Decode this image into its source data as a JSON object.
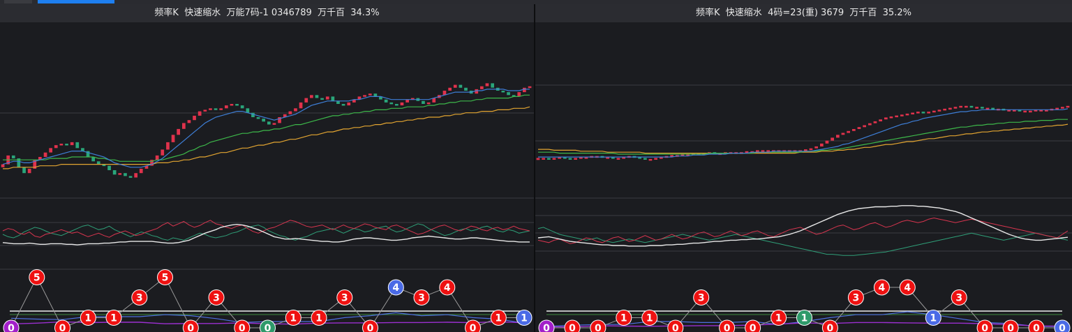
{
  "colors": {
    "up": "#e0324c",
    "down": "#2aa57a",
    "ma1": "#3e7fd8",
    "ma2": "#3db84a",
    "ma3": "#e3a531",
    "osc_red": "#d8354f",
    "osc_green": "#2f9f78",
    "osc_white": "#e8e8e8",
    "circle_red": "#ee1111",
    "circle_blue": "#4a6ae6",
    "circle_green": "#2e9a6a",
    "circle_purple": "#a21ec9"
  },
  "chart_data": [
    {
      "type": "candlestick",
      "title": "频率K  快速缩水  万能7码-1 0346789  万千百  34.3%",
      "closes": [
        52,
        58,
        56,
        50,
        46,
        49,
        55,
        57,
        60,
        63,
        65,
        66,
        65,
        67,
        63,
        61,
        57,
        54,
        52,
        51,
        48,
        45,
        46,
        44,
        43,
        46,
        49,
        51,
        55,
        58,
        62,
        67,
        72,
        76,
        80,
        82,
        85,
        88,
        89,
        90,
        89,
        90,
        92,
        93,
        92,
        90,
        87,
        84,
        83,
        81,
        79,
        80,
        84,
        86,
        88,
        90,
        94,
        97,
        99,
        97,
        96,
        98,
        95,
        93,
        92,
        94,
        96,
        98,
        99,
        100,
        98,
        96,
        94,
        93,
        92,
        94,
        96,
        97,
        95,
        93,
        94,
        97,
        99,
        102,
        104,
        106,
        104,
        102,
        100,
        103,
        105,
        107,
        104,
        102,
        101,
        99,
        98,
        101,
        104,
        105
      ],
      "ma_short": [
        52,
        53,
        54,
        54,
        53,
        53,
        54,
        55,
        56,
        57,
        58,
        59,
        60,
        61,
        61,
        61,
        60,
        59,
        58,
        57,
        55,
        53,
        52,
        51,
        50,
        50,
        50,
        51,
        52,
        54,
        56,
        59,
        62,
        65,
        68,
        71,
        74,
        77,
        80,
        82,
        84,
        85,
        86,
        87,
        88,
        88,
        87,
        86,
        85,
        84,
        83,
        82,
        83,
        84,
        85,
        86,
        88,
        90,
        92,
        93,
        94,
        95,
        95,
        95,
        95,
        95,
        96,
        96,
        97,
        98,
        98,
        98,
        97,
        96,
        96,
        96,
        96,
        96,
        96,
        96,
        96,
        97,
        98,
        99,
        100,
        101,
        101,
        101,
        101,
        102,
        102,
        103,
        103,
        103,
        103,
        102,
        102,
        102,
        103,
        103
      ],
      "ma_mid": [
        55,
        55,
        55,
        55,
        55,
        55,
        55,
        55,
        55,
        56,
        56,
        56,
        56,
        57,
        57,
        57,
        57,
        57,
        56,
        56,
        55,
        55,
        54,
        54,
        54,
        54,
        54,
        54,
        54,
        55,
        55,
        56,
        57,
        58,
        59,
        61,
        62,
        64,
        65,
        67,
        68,
        69,
        70,
        71,
        72,
        73,
        73,
        74,
        74,
        75,
        75,
        76,
        76,
        77,
        78,
        79,
        79,
        80,
        81,
        82,
        83,
        84,
        85,
        85,
        86,
        86,
        87,
        87,
        88,
        88,
        89,
        89,
        89,
        90,
        90,
        90,
        91,
        91,
        91,
        91,
        92,
        92,
        93,
        93,
        94,
        94,
        95,
        95,
        95,
        96,
        96,
        97,
        97,
        97,
        97,
        97,
        98,
        98,
        99,
        99
      ],
      "ma_long": [
        49,
        49,
        50,
        50,
        50,
        50,
        50,
        51,
        51,
        51,
        51,
        52,
        52,
        52,
        52,
        52,
        52,
        52,
        52,
        52,
        52,
        52,
        52,
        52,
        52,
        52,
        52,
        52,
        52,
        53,
        53,
        53,
        54,
        54,
        55,
        55,
        56,
        57,
        57,
        58,
        59,
        60,
        60,
        61,
        62,
        63,
        63,
        64,
        65,
        65,
        66,
        67,
        67,
        68,
        69,
        69,
        70,
        71,
        72,
        72,
        73,
        74,
        74,
        75,
        76,
        76,
        77,
        77,
        78,
        78,
        79,
        79,
        80,
        80,
        81,
        81,
        82,
        82,
        83,
        83,
        84,
        84,
        84,
        85,
        85,
        86,
        86,
        87,
        87,
        87,
        88,
        88,
        88,
        89,
        89,
        89,
        90,
        90,
        90,
        91
      ],
      "ylim": [
        30,
        120
      ],
      "osc_red": [
        56,
        60,
        58,
        52,
        50,
        54,
        47,
        45,
        50,
        52,
        55,
        58,
        55,
        52,
        54,
        50,
        46,
        49,
        52,
        48,
        45,
        50,
        53,
        56,
        52,
        48,
        50,
        54,
        57,
        60,
        66,
        70,
        64,
        68,
        72,
        66,
        62,
        65,
        70,
        74,
        68,
        66,
        62,
        60,
        64,
        66,
        60,
        55,
        52,
        56,
        60,
        62,
        66,
        70,
        74,
        72,
        68,
        64,
        62,
        64,
        66,
        62,
        58,
        62,
        66,
        62,
        60,
        64,
        68,
        66,
        62,
        60,
        58,
        64,
        66,
        62,
        58,
        54,
        50,
        52,
        56,
        60,
        64,
        66,
        62,
        58,
        56,
        60,
        64,
        62,
        58,
        56,
        60,
        62,
        58,
        60,
        64,
        60,
        58,
        56
      ],
      "osc_green": [
        50,
        46,
        44,
        48,
        54,
        58,
        62,
        60,
        56,
        52,
        50,
        48,
        52,
        56,
        60,
        64,
        66,
        62,
        58,
        60,
        64,
        58,
        54,
        50,
        46,
        50,
        54,
        52,
        48,
        46,
        42,
        40,
        44,
        42,
        40,
        44,
        48,
        52,
        50,
        46,
        44,
        46,
        48,
        52,
        54,
        58,
        62,
        64,
        66,
        62,
        56,
        52,
        48,
        46,
        42,
        40,
        44,
        46,
        50,
        54,
        56,
        58,
        60,
        56,
        52,
        56,
        60,
        58,
        54,
        56,
        60,
        62,
        64,
        58,
        54,
        56,
        60,
        64,
        68,
        66,
        60,
        56,
        52,
        48,
        50,
        54,
        58,
        60,
        56,
        58,
        62,
        64,
        60,
        56,
        54,
        58,
        56,
        52,
        54,
        56
      ],
      "osc_white": [
        36,
        35,
        34,
        34,
        34,
        35,
        34,
        33,
        33,
        34,
        34,
        34,
        33,
        33,
        32,
        33,
        34,
        34,
        34,
        35,
        35,
        36,
        37,
        37,
        38,
        38,
        38,
        38,
        38,
        37,
        36,
        35,
        35,
        36,
        38,
        40,
        44,
        48,
        52,
        55,
        58,
        62,
        64,
        66,
        67,
        66,
        64,
        61,
        58,
        54,
        50,
        46,
        44,
        42,
        42,
        43,
        42,
        41,
        40,
        39,
        38,
        38,
        37,
        37,
        38,
        40,
        42,
        43,
        44,
        44,
        43,
        42,
        41,
        40,
        40,
        41,
        42,
        44,
        45,
        46,
        47,
        46,
        45,
        44,
        43,
        42,
        42,
        43,
        44,
        44,
        43,
        42,
        41,
        40,
        39,
        38,
        38,
        37,
        37,
        37
      ],
      "pattern_nums": [
        0,
        5,
        0,
        1,
        1,
        3,
        5,
        0,
        3,
        0,
        0,
        1,
        1,
        3,
        0,
        4,
        3,
        4,
        0,
        1,
        1
      ],
      "pattern_colors": [
        "purple",
        "red",
        "red",
        "red",
        "red",
        "red",
        "red",
        "red",
        "red",
        "red",
        "green",
        "red",
        "red",
        "red",
        "red",
        "blue",
        "red",
        "red",
        "red",
        "red",
        "blue"
      ]
    },
    {
      "type": "candlestick",
      "title": "频率K  快速缩水  4码=23(重) 3679  万千百  35.2%",
      "closes": [
        30,
        30,
        29,
        30,
        31,
        30,
        29,
        30,
        31,
        31,
        32,
        32,
        31,
        31,
        30,
        30,
        31,
        32,
        31,
        30,
        29,
        29,
        30,
        31,
        32,
        33,
        33,
        34,
        34,
        35,
        35,
        35,
        36,
        35,
        35,
        36,
        36,
        36,
        36,
        37,
        37,
        38,
        38,
        38,
        38,
        38,
        38,
        38,
        38,
        38,
        39,
        40,
        42,
        45,
        48,
        51,
        54,
        56,
        58,
        60,
        62,
        64,
        66,
        68,
        70,
        72,
        73,
        74,
        75,
        76,
        77,
        78,
        77,
        78,
        79,
        80,
        81,
        82,
        83,
        84,
        84,
        83,
        83,
        82,
        82,
        81,
        81,
        80,
        80,
        80,
        79,
        79,
        79,
        80,
        80,
        80,
        81,
        82,
        83,
        84
      ],
      "ma_short": [
        31,
        31,
        31,
        31,
        31,
        31,
        31,
        31,
        31,
        31,
        31,
        31,
        31,
        31,
        31,
        31,
        31,
        31,
        31,
        31,
        31,
        31,
        31,
        31,
        31,
        31,
        32,
        32,
        32,
        33,
        33,
        33,
        34,
        34,
        34,
        34,
        35,
        35,
        35,
        35,
        36,
        36,
        36,
        36,
        37,
        37,
        37,
        37,
        37,
        37,
        37,
        37,
        38,
        39,
        40,
        41,
        42,
        44,
        45,
        47,
        49,
        51,
        53,
        55,
        57,
        59,
        61,
        63,
        65,
        66,
        68,
        69,
        71,
        72,
        73,
        74,
        75,
        76,
        77,
        78,
        78,
        79,
        79,
        80,
        80,
        80,
        80,
        80,
        80,
        80,
        80,
        80,
        80,
        80,
        80,
        80,
        80,
        80,
        80,
        81
      ],
      "ma_mid": [
        36,
        36,
        36,
        36,
        35,
        35,
        35,
        35,
        35,
        35,
        35,
        35,
        35,
        35,
        35,
        34,
        34,
        34,
        34,
        34,
        34,
        34,
        34,
        34,
        34,
        34,
        34,
        34,
        34,
        34,
        34,
        34,
        35,
        35,
        35,
        35,
        35,
        35,
        35,
        35,
        35,
        36,
        36,
        36,
        36,
        36,
        36,
        36,
        36,
        36,
        37,
        37,
        37,
        38,
        38,
        39,
        39,
        40,
        41,
        42,
        43,
        44,
        45,
        46,
        47,
        48,
        49,
        50,
        51,
        52,
        53,
        54,
        55,
        56,
        57,
        58,
        59,
        60,
        61,
        62,
        62,
        63,
        64,
        64,
        65,
        65,
        66,
        66,
        67,
        67,
        67,
        68,
        68,
        68,
        69,
        69,
        69,
        70,
        70,
        70
      ],
      "ma_long": [
        39,
        39,
        39,
        38,
        38,
        38,
        38,
        38,
        37,
        37,
        37,
        37,
        37,
        36,
        36,
        36,
        36,
        36,
        36,
        36,
        35,
        35,
        35,
        35,
        35,
        35,
        35,
        35,
        35,
        35,
        35,
        35,
        35,
        35,
        35,
        35,
        35,
        35,
        35,
        35,
        35,
        35,
        35,
        35,
        35,
        35,
        35,
        35,
        35,
        36,
        36,
        36,
        36,
        37,
        37,
        37,
        38,
        38,
        39,
        39,
        40,
        41,
        41,
        42,
        43,
        44,
        44,
        45,
        46,
        47,
        47,
        48,
        49,
        50,
        50,
        51,
        52,
        53,
        53,
        54,
        55,
        55,
        56,
        57,
        57,
        58,
        58,
        59,
        59,
        60,
        60,
        61,
        61,
        62,
        62,
        63,
        63,
        64,
        64,
        65
      ],
      "ylim": [
        0,
        120
      ],
      "osc_red": [
        40,
        38,
        36,
        40,
        42,
        38,
        34,
        36,
        40,
        44,
        42,
        38,
        36,
        40,
        44,
        46,
        42,
        38,
        40,
        44,
        48,
        44,
        40,
        42,
        46,
        50,
        46,
        42,
        44,
        48,
        52,
        54,
        50,
        46,
        48,
        52,
        56,
        52,
        48,
        50,
        54,
        56,
        52,
        48,
        46,
        50,
        54,
        58,
        60,
        62,
        58,
        54,
        50,
        52,
        56,
        60,
        64,
        66,
        62,
        58,
        60,
        64,
        68,
        70,
        66,
        62,
        64,
        68,
        72,
        74,
        72,
        70,
        72,
        76,
        78,
        76,
        74,
        72,
        70,
        72,
        74,
        76,
        74,
        72,
        70,
        68,
        66,
        64,
        62,
        60,
        58,
        56,
        54,
        52,
        50,
        48,
        46,
        44,
        50,
        56
      ],
      "osc_green": [
        60,
        62,
        58,
        54,
        50,
        48,
        46,
        44,
        42,
        40,
        42,
        44,
        40,
        38,
        36,
        38,
        40,
        42,
        40,
        38,
        36,
        38,
        40,
        42,
        44,
        46,
        48,
        50,
        48,
        46,
        44,
        42,
        40,
        42,
        44,
        46,
        48,
        50,
        48,
        46,
        44,
        42,
        40,
        38,
        36,
        34,
        32,
        30,
        28,
        26,
        24,
        22,
        20,
        18,
        16,
        16,
        15,
        14,
        14,
        14,
        15,
        16,
        17,
        18,
        19,
        20,
        22,
        24,
        26,
        28,
        30,
        32,
        34,
        36,
        38,
        40,
        42,
        44,
        46,
        48,
        50,
        52,
        50,
        48,
        46,
        44,
        42,
        40,
        42,
        44,
        46,
        48,
        50,
        52,
        50,
        48,
        46,
        44,
        42,
        40
      ],
      "osc_white": [
        44,
        45,
        46,
        44,
        42,
        40,
        38,
        37,
        36,
        35,
        34,
        33,
        32,
        32,
        31,
        31,
        31,
        30,
        30,
        30,
        30,
        31,
        31,
        31,
        32,
        32,
        33,
        33,
        34,
        35,
        35,
        36,
        37,
        38,
        38,
        39,
        40,
        40,
        41,
        41,
        42,
        42,
        43,
        44,
        45,
        46,
        48,
        50,
        53,
        56,
        60,
        64,
        68,
        72,
        76,
        80,
        84,
        87,
        90,
        92,
        94,
        95,
        96,
        97,
        97,
        97,
        98,
        98,
        99,
        99,
        99,
        98,
        98,
        97,
        96,
        95,
        93,
        91,
        89,
        86,
        82,
        78,
        74,
        70,
        66,
        62,
        58,
        54,
        50,
        47,
        44,
        42,
        41,
        40,
        40,
        41,
        42,
        43,
        44,
        45
      ],
      "pattern_nums": [
        0,
        0,
        0,
        1,
        1,
        0,
        3,
        0,
        0,
        1,
        1,
        0,
        3,
        4,
        4,
        1,
        3,
        0,
        0,
        0,
        0
      ],
      "pattern_colors": [
        "purple",
        "red",
        "red",
        "red",
        "red",
        "red",
        "red",
        "red",
        "red",
        "red",
        "green",
        "red",
        "red",
        "red",
        "red",
        "blue",
        "red",
        "red",
        "red",
        "red",
        "blue"
      ]
    }
  ]
}
